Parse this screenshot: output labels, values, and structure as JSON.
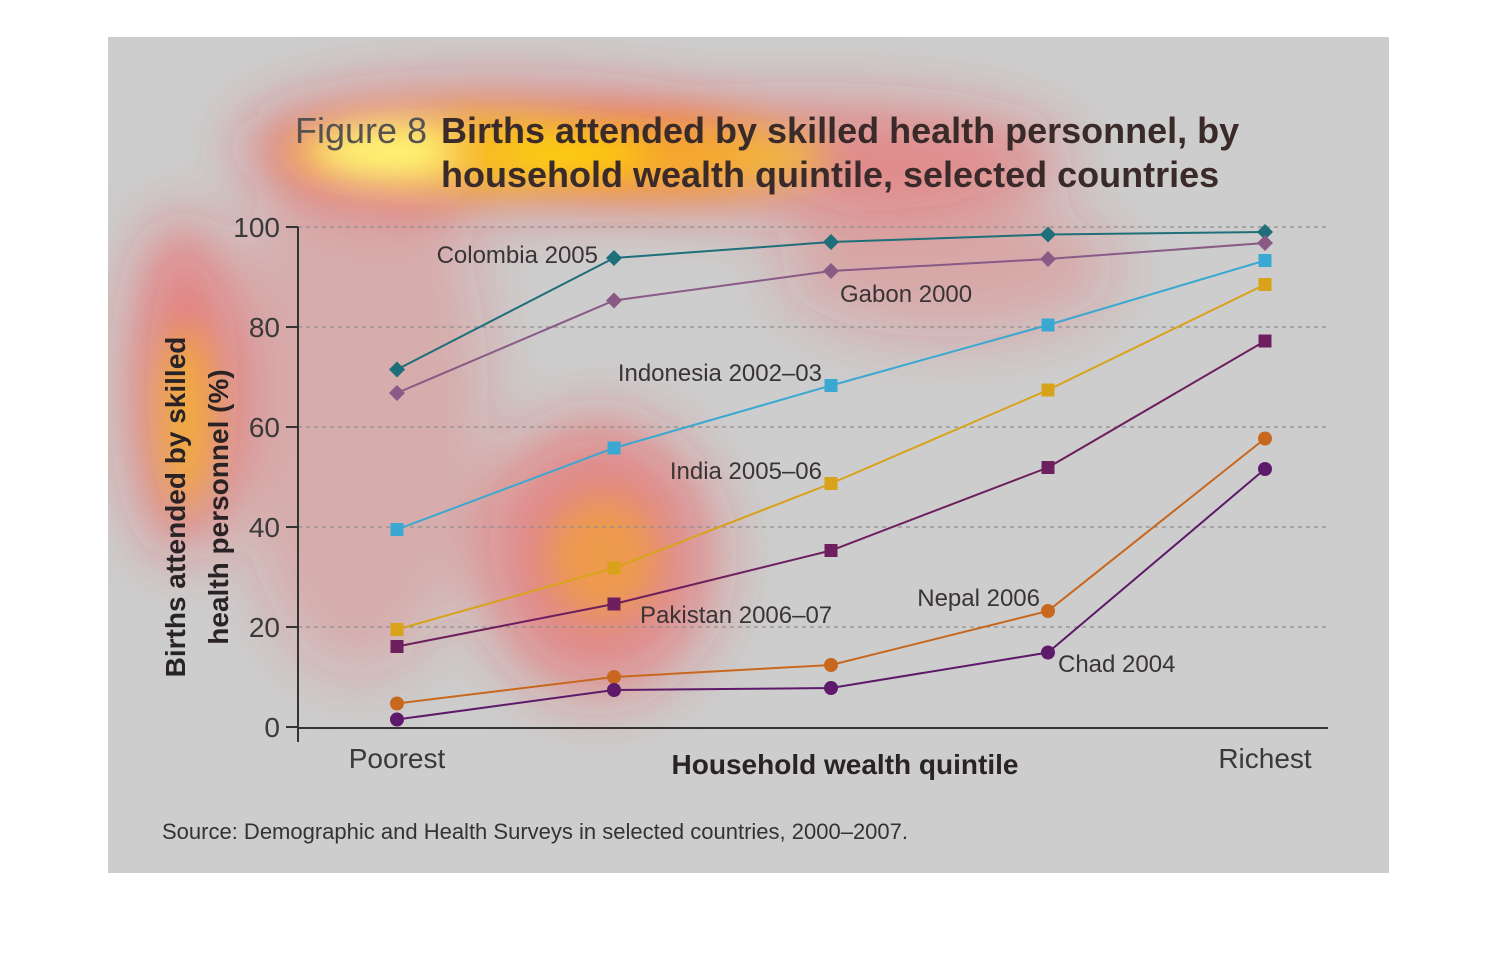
{
  "figure": {
    "label": "Figure 8",
    "title_line1": "Births attended by skilled health personnel, by",
    "title_line2": "household wealth quintile, selected countries",
    "source": "Source: Demographic and Health Surveys in selected countries, 2000–2007."
  },
  "chart_data": {
    "type": "line",
    "x": [
      1,
      2,
      3,
      4,
      5
    ],
    "x_tick_labels": {
      "1": "Poorest",
      "5": "Richest"
    },
    "xlabel": "Household wealth quintile",
    "ylabel_line1": "Births attended by skilled",
    "ylabel_line2": "health personnel (%)",
    "ylim": [
      0,
      100
    ],
    "yticks": [
      0,
      20,
      40,
      60,
      80,
      100
    ],
    "grid": true,
    "series": [
      {
        "name": "Colombia 2005",
        "color": "#1e6f7a",
        "marker": "diamond",
        "values": [
          71.5,
          93.8,
          97,
          98.5,
          99
        ]
      },
      {
        "name": "Gabon 2000",
        "color": "#8a5a86",
        "marker": "diamond",
        "values": [
          66.8,
          85.3,
          91.2,
          93.6,
          96.8
        ]
      },
      {
        "name": "Indonesia 2002–03",
        "color": "#3aa8d1",
        "marker": "square",
        "values": [
          39.5,
          55.8,
          68.3,
          80.4,
          93.3
        ]
      },
      {
        "name": "India 2005–06",
        "color": "#d9a21b",
        "marker": "square",
        "values": [
          19.5,
          31.8,
          48.7,
          67.4,
          88.5
        ]
      },
      {
        "name": "Pakistan 2006–07",
        "color": "#6e1f5e",
        "marker": "square",
        "values": [
          16.1,
          24.6,
          35.3,
          51.9,
          77.2
        ]
      },
      {
        "name": "Nepal 2006",
        "color": "#c8681e",
        "marker": "circle",
        "values": [
          4.7,
          10,
          12.4,
          23.2,
          57.7
        ]
      },
      {
        "name": "Chad 2004",
        "color": "#5e1a6a",
        "marker": "circle",
        "values": [
          1.5,
          7.4,
          7.8,
          14.9,
          51.6
        ]
      }
    ]
  }
}
